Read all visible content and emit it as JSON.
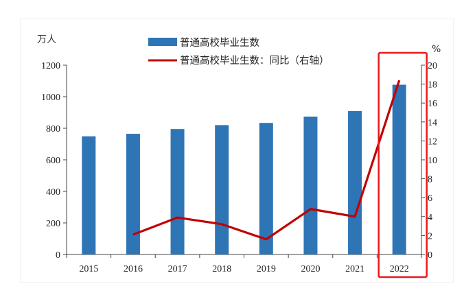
{
  "chart_data": {
    "type": "bar",
    "categories": [
      "2015",
      "2016",
      "2017",
      "2018",
      "2019",
      "2020",
      "2021",
      "2022"
    ],
    "series": [
      {
        "name": "普通高校毕业生数",
        "type": "bar",
        "axis": "left",
        "color": "#2e75b6",
        "values": [
          749,
          765,
          795,
          820,
          834,
          874,
          909,
          1076
        ]
      },
      {
        "name": "普通高校毕业生数：同比（右轴）",
        "type": "line",
        "axis": "right",
        "color": "#c00000",
        "values": [
          null,
          2.1,
          3.9,
          3.2,
          1.6,
          4.8,
          4.0,
          18.4
        ]
      }
    ],
    "y_left": {
      "unit": "万人",
      "min": 0,
      "max": 1200,
      "ticks": [
        0,
        200,
        400,
        600,
        800,
        1000,
        1200
      ]
    },
    "y_right": {
      "unit": "%",
      "min": 0,
      "max": 20,
      "ticks": [
        0,
        2,
        4,
        6,
        8,
        10,
        12,
        14,
        16,
        18,
        20
      ]
    },
    "legend_position": "top-center",
    "highlight": {
      "category": "2022",
      "color": "#e8191c"
    },
    "grid": false
  }
}
